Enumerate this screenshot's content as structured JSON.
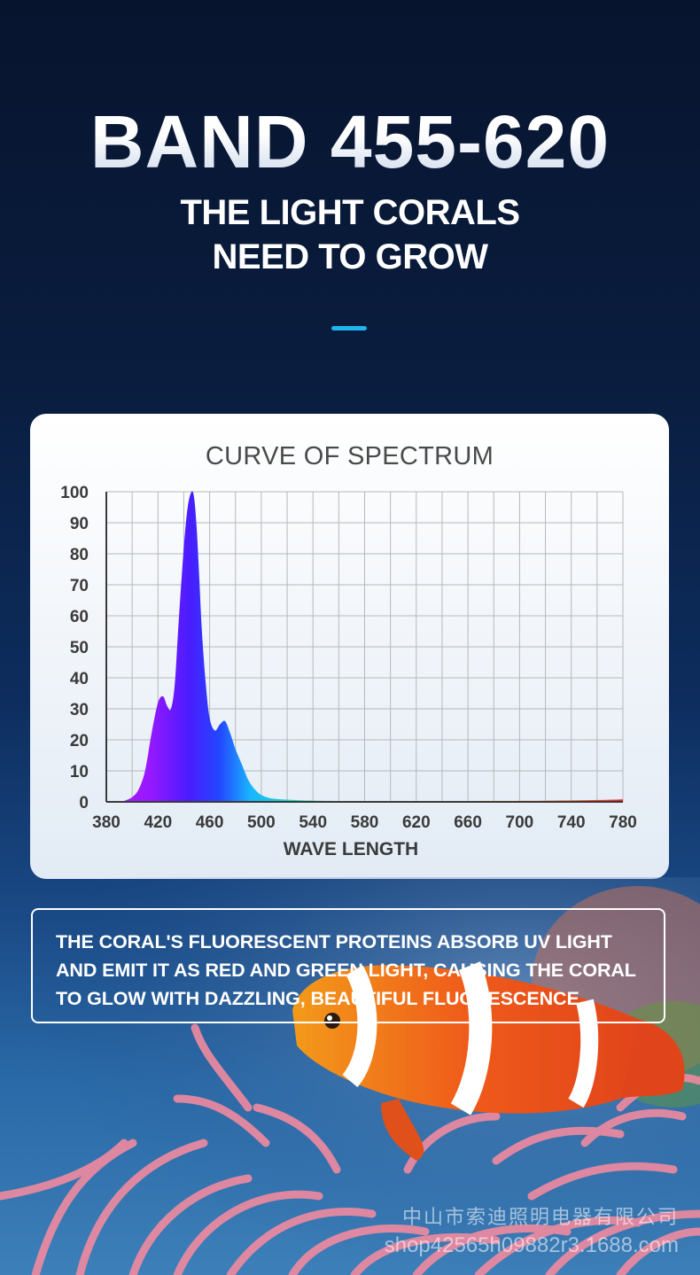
{
  "hero": {
    "title": "BAND 455-620",
    "subtitle_line1": "THE LIGHT CORALS",
    "subtitle_line2": "NEED TO GROW"
  },
  "colors": {
    "accent": "#1fb4f0",
    "background_top": "#07142e",
    "card": "#ffffff"
  },
  "chart_data": {
    "type": "area",
    "title": "CURVE OF SPECTRUM",
    "xlabel": "WAVE LENGTH",
    "ylabel": "",
    "xlim": [
      380,
      780
    ],
    "ylim": [
      0,
      100
    ],
    "x_ticks": [
      "380",
      "420",
      "460",
      "500",
      "540",
      "580",
      "620",
      "660",
      "700",
      "740",
      "780"
    ],
    "y_ticks": [
      "100",
      "90",
      "80",
      "70",
      "60",
      "50",
      "40",
      "30",
      "20",
      "10",
      "0"
    ],
    "grid": true,
    "x": [
      380,
      390,
      395,
      400,
      405,
      410,
      415,
      420,
      424,
      427,
      430,
      433,
      436,
      440,
      443,
      446,
      448,
      450,
      452,
      454,
      457,
      460,
      464,
      468,
      472,
      476,
      480,
      485,
      490,
      495,
      500,
      505,
      510,
      520,
      530,
      540,
      560,
      600,
      660,
      720,
      760,
      780
    ],
    "y": [
      0,
      0,
      0.5,
      1.5,
      4,
      10,
      22,
      32,
      34,
      31,
      30,
      38,
      58,
      82,
      95,
      100,
      98,
      88,
      72,
      55,
      38,
      27,
      23,
      25,
      26,
      22,
      17,
      12,
      7,
      4,
      2.2,
      1.4,
      1.0,
      0.7,
      0.5,
      0.4,
      0.3,
      0.3,
      0.3,
      0.4,
      0.6,
      0.8
    ]
  },
  "info": {
    "text": "THE CORAL'S FLUORESCENT PROTEINS ABSORB UV LIGHT AND EMIT IT AS RED AND GREEN LIGHT, CAUSING THE CORAL TO GLOW WITH DAZZLING, BEAUTIFUL FLUORESCENCE."
  },
  "watermark": {
    "line1": "中山市索迪照明电器有限公司",
    "line2": "shop42565h09882r3.1688.com"
  },
  "scene": {
    "image": "clownfish-on-anemone"
  }
}
